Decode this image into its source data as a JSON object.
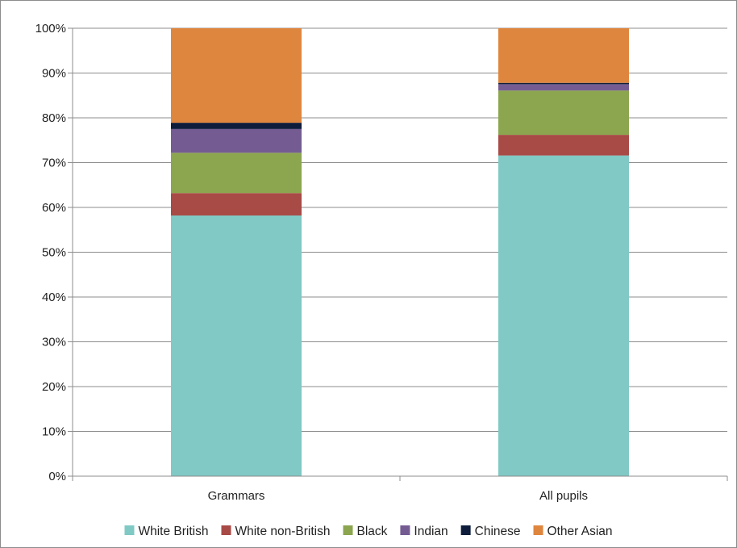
{
  "chart_data": {
    "type": "bar",
    "stacked": true,
    "percent": true,
    "categories": [
      "Grammars",
      "All pupils"
    ],
    "series": [
      {
        "name": "White British",
        "color": "#80C9C5",
        "values": [
          58.2,
          71.6
        ]
      },
      {
        "name": "White non-British",
        "color": "#A84A46",
        "values": [
          5.0,
          4.6
        ]
      },
      {
        "name": "Black",
        "color": "#8BA64F",
        "values": [
          9.0,
          9.9
        ]
      },
      {
        "name": "Indian",
        "color": "#745C93",
        "values": [
          5.3,
          1.4
        ]
      },
      {
        "name": "Chinese",
        "color": "#0E1D3B",
        "values": [
          1.4,
          0.3
        ]
      },
      {
        "name": "Other Asian",
        "color": "#DF863E",
        "values": [
          21.1,
          12.2
        ]
      }
    ],
    "ylim": [
      0,
      100
    ],
    "yticks": [
      "0%",
      "10%",
      "20%",
      "30%",
      "40%",
      "50%",
      "60%",
      "70%",
      "80%",
      "90%",
      "100%"
    ],
    "grid": true,
    "legend_position": "bottom",
    "title": "",
    "xlabel": "",
    "ylabel": ""
  }
}
